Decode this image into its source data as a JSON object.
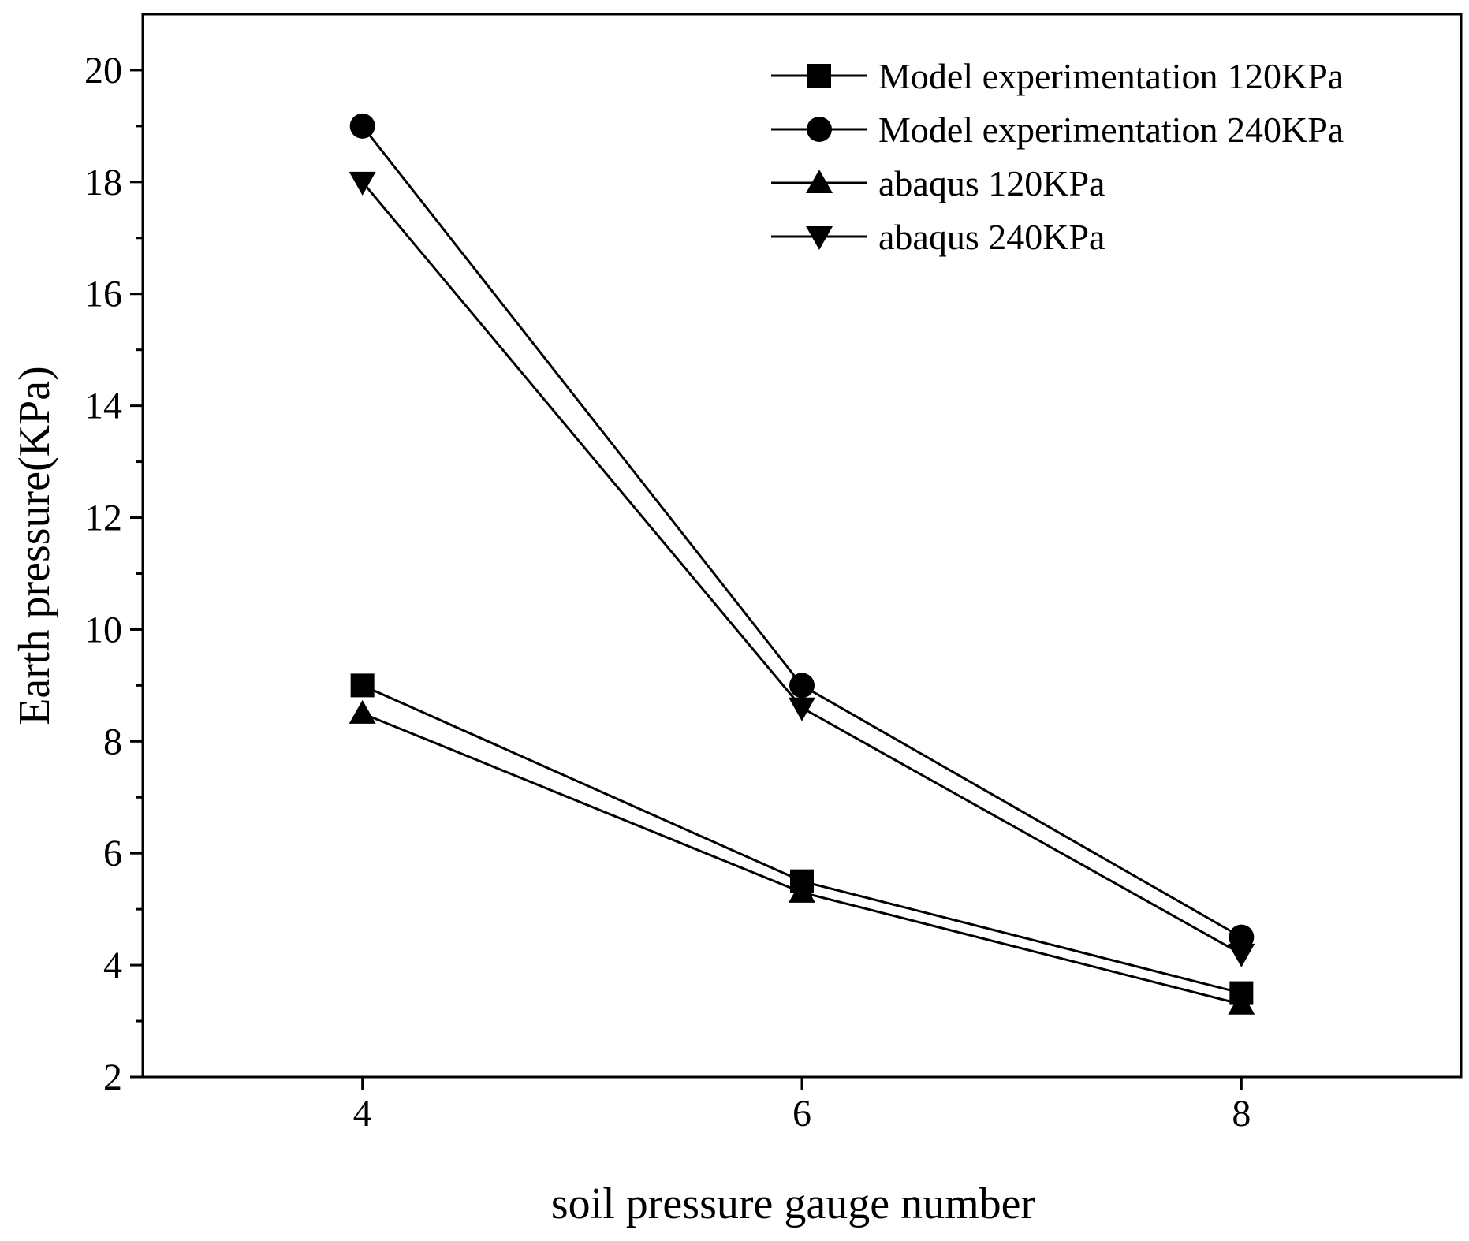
{
  "chart_data": {
    "type": "line",
    "title": "",
    "xlabel": "soil pressure gauge number",
    "ylabel": "Earth pressure(KPa)",
    "x": [
      4,
      6,
      8
    ],
    "xlim": [
      3,
      9
    ],
    "ylim": [
      2,
      21
    ],
    "xticks": [
      4,
      6,
      8
    ],
    "yticks": [
      2,
      4,
      6,
      8,
      10,
      12,
      14,
      16,
      18,
      20
    ],
    "grid": false,
    "legend_position": "top-right",
    "line_color": "#000000",
    "series": [
      {
        "name": "Model experimentation 120KPa",
        "marker": "square",
        "values": [
          9,
          5.5,
          3.5
        ]
      },
      {
        "name": "Model experimentation 240KPa",
        "marker": "circle",
        "values": [
          19,
          9,
          4.5
        ]
      },
      {
        "name": "abaqus 120KPa",
        "marker": "triangle-up",
        "values": [
          8.5,
          5.3,
          3.3
        ]
      },
      {
        "name": "abaqus 240KPa",
        "marker": "triangle-down",
        "values": [
          18,
          8.6,
          4.2
        ]
      }
    ]
  }
}
